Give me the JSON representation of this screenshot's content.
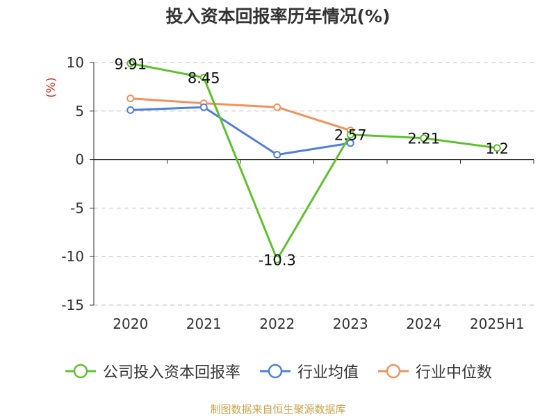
{
  "chart_data": {
    "type": "line",
    "title": "投入资本回报率历年情况(%)",
    "ylabel": "(%)",
    "xlabel": "",
    "categories": [
      "2020",
      "2021",
      "2022",
      "2023",
      "2024",
      "2025H1"
    ],
    "ylim": [
      -15,
      10
    ],
    "yticks": [
      10,
      5,
      0,
      -5,
      -10,
      -15
    ],
    "grid": true,
    "legend_position": "bottom",
    "series": [
      {
        "name": "公司投入资本回报率",
        "color": "#5dc12d",
        "values": [
          9.91,
          8.45,
          -10.3,
          2.57,
          2.21,
          1.2
        ],
        "value_labels": [
          "9.91",
          "8.45",
          "-10.3",
          "2.57",
          "2.21",
          "1.2"
        ]
      },
      {
        "name": "行业均值",
        "color": "#4f7fdc",
        "values": [
          5.1,
          5.4,
          0.5,
          1.7,
          null,
          null
        ]
      },
      {
        "name": "行业中位数",
        "color": "#f4905a",
        "values": [
          6.3,
          5.8,
          5.4,
          3.0,
          null,
          null
        ]
      }
    ]
  },
  "source": "制图数据来自恒生聚源数据库"
}
